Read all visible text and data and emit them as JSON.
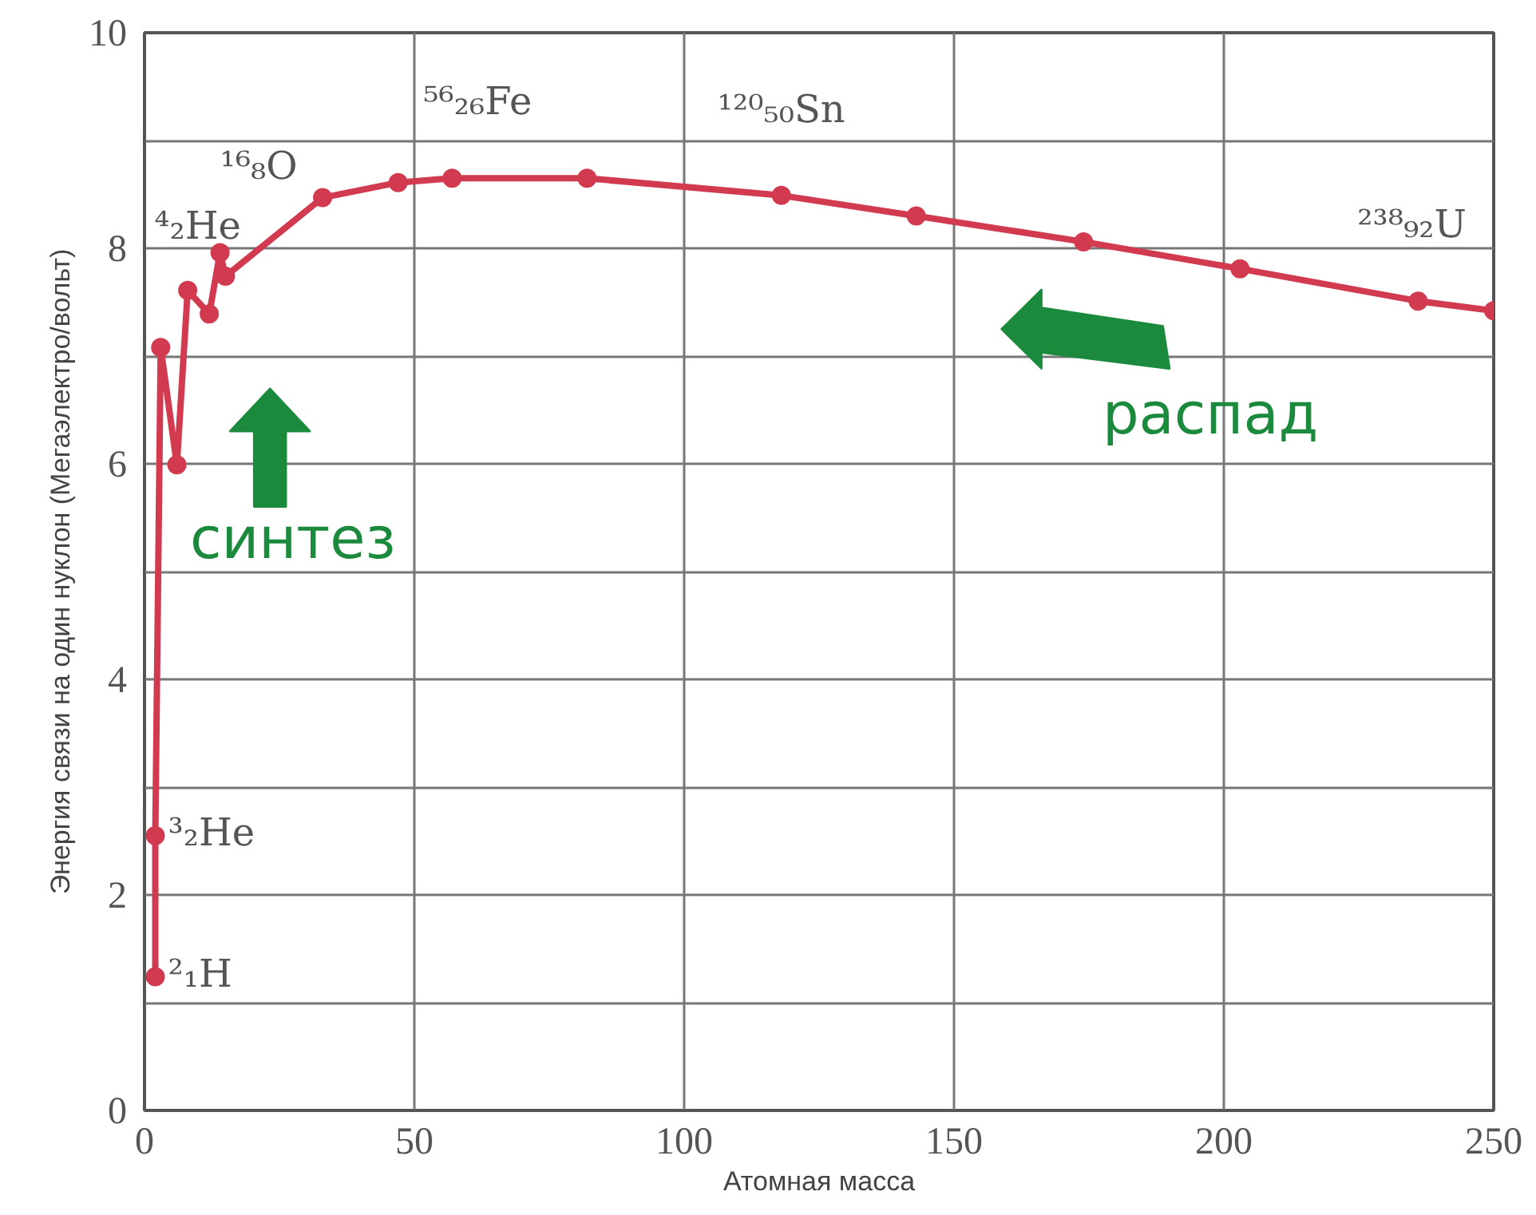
{
  "chart_data": {
    "type": "line",
    "xlabel": "Атомная масса",
    "ylabel": "Энергия связи на один нуклон (Мегаэлектро/вольт)",
    "x": [
      2,
      2,
      3,
      6,
      8,
      12,
      14,
      15,
      33,
      47,
      57,
      82,
      118,
      143,
      174,
      203,
      236,
      250
    ],
    "series": [
      {
        "color": "#d23a50",
        "values": [
          1.24,
          2.55,
          7.08,
          5.99,
          7.61,
          7.39,
          7.96,
          7.74,
          8.47,
          8.61,
          8.65,
          8.65,
          8.49,
          8.3,
          8.06,
          7.81,
          7.51,
          7.42
        ]
      }
    ],
    "marker": "circle",
    "line_style": "solid",
    "xlim": [
      0,
      250
    ],
    "xticks": [
      0,
      50,
      100,
      150,
      200,
      250
    ],
    "ylim": [
      0,
      10
    ],
    "yticks": [
      0,
      {
        "value": 1,
        "label": null
      },
      2,
      {
        "value": 3,
        "label": null
      },
      4,
      {
        "value": 5,
        "label": null
      },
      6,
      {
        "value": 7,
        "label": null
      },
      8,
      {
        "value": 9,
        "label": null
      },
      10
    ],
    "grid": true,
    "annotations": [
      {
        "text": "²₁H",
        "x": 2,
        "y": 1.24
      },
      {
        "text": "³₂He",
        "x": 2,
        "y": 2.55
      },
      {
        "text": "⁴₂He",
        "x": 3,
        "y": 7.08
      },
      {
        "text": "¹⁶₈O",
        "x": 14,
        "y": 7.96
      },
      {
        "text": "⁵⁶₂₆Fe",
        "x": 57,
        "y": 8.65
      },
      {
        "text": "¹²⁰₅₀Sn",
        "x": 118,
        "y": 8.49
      },
      {
        "text": "²³⁸₉₂U",
        "x": 236,
        "y": 7.51
      },
      "синтез",
      "распад"
    ]
  }
}
